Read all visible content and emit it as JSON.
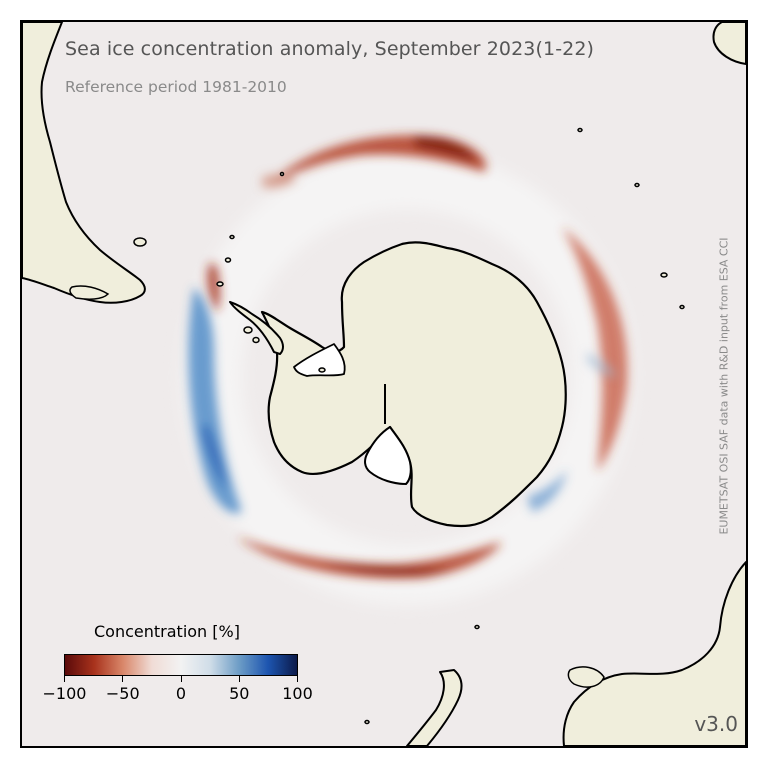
{
  "title": "Sea ice concentration anomaly, September 2023(1-22)",
  "subtitle": "Reference period 1981-2010",
  "credit": "EUMETSAT OSI SAF data with R&D input from ESA CCI",
  "version": "v3.0",
  "colorbar": {
    "label": "Concentration [%]",
    "ticks": [
      "−100",
      "−50",
      "0",
      "50",
      "100"
    ],
    "range": [
      -100,
      100
    ],
    "colors": [
      "#5a0a0a",
      "#a8321c",
      "#d9876a",
      "#f0dcd6",
      "#f2f2f2",
      "#d0dde8",
      "#6d9dc6",
      "#1d55b0",
      "#0c1a4a"
    ]
  },
  "colors": {
    "ocean": "#efebeb",
    "land": "#f0eedc",
    "coast": "#000000",
    "negative_anomaly": "#b0391f",
    "positive_anomaly": "#3b7ec2"
  }
}
